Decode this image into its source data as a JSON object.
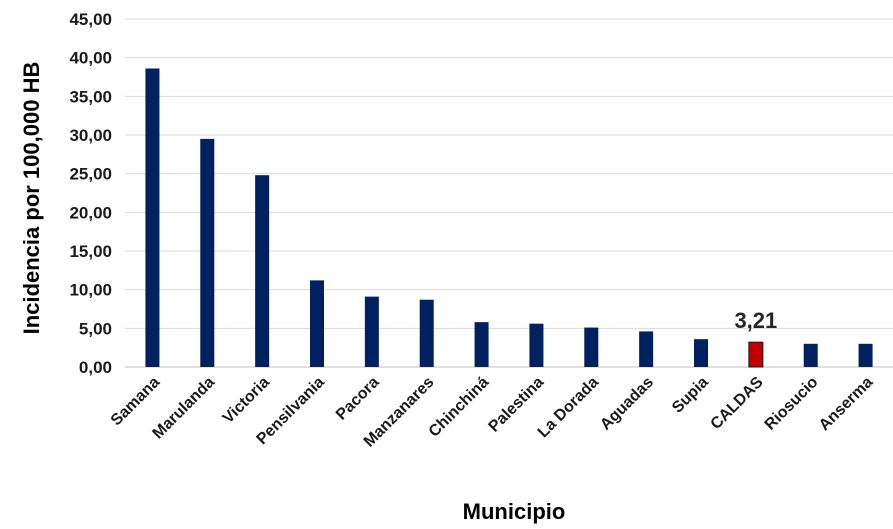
{
  "chart_data": {
    "type": "bar",
    "categories": [
      "Samana",
      "Marulanda",
      "Victoria",
      "Pensilvania",
      "Pacora",
      "Manzanares",
      "Chinchiná",
      "Palestina",
      "La Dorada",
      "Aguadas",
      "Supia",
      "CALDAS",
      "Riosucio",
      "Anserma"
    ],
    "values": [
      38.6,
      29.5,
      24.8,
      11.2,
      9.1,
      8.7,
      5.8,
      5.6,
      5.1,
      4.6,
      3.6,
      3.21,
      3.0,
      3.0
    ],
    "xlabel": "Municipio",
    "ylabel": "Incidencia por  100,000 HB",
    "ylim": [
      0,
      45
    ],
    "yticks": [
      "0,00",
      "5,00",
      "10,00",
      "15,00",
      "20,00",
      "25,00",
      "30,00",
      "35,00",
      "40,00",
      "45,00"
    ],
    "grid": true,
    "legend": "none",
    "colors": {
      "default": "#002060",
      "highlight": "#C00000"
    },
    "highlight_category": "CALDAS",
    "data_labels": [
      {
        "category": "CALDAS",
        "text": "3,21"
      }
    ]
  }
}
